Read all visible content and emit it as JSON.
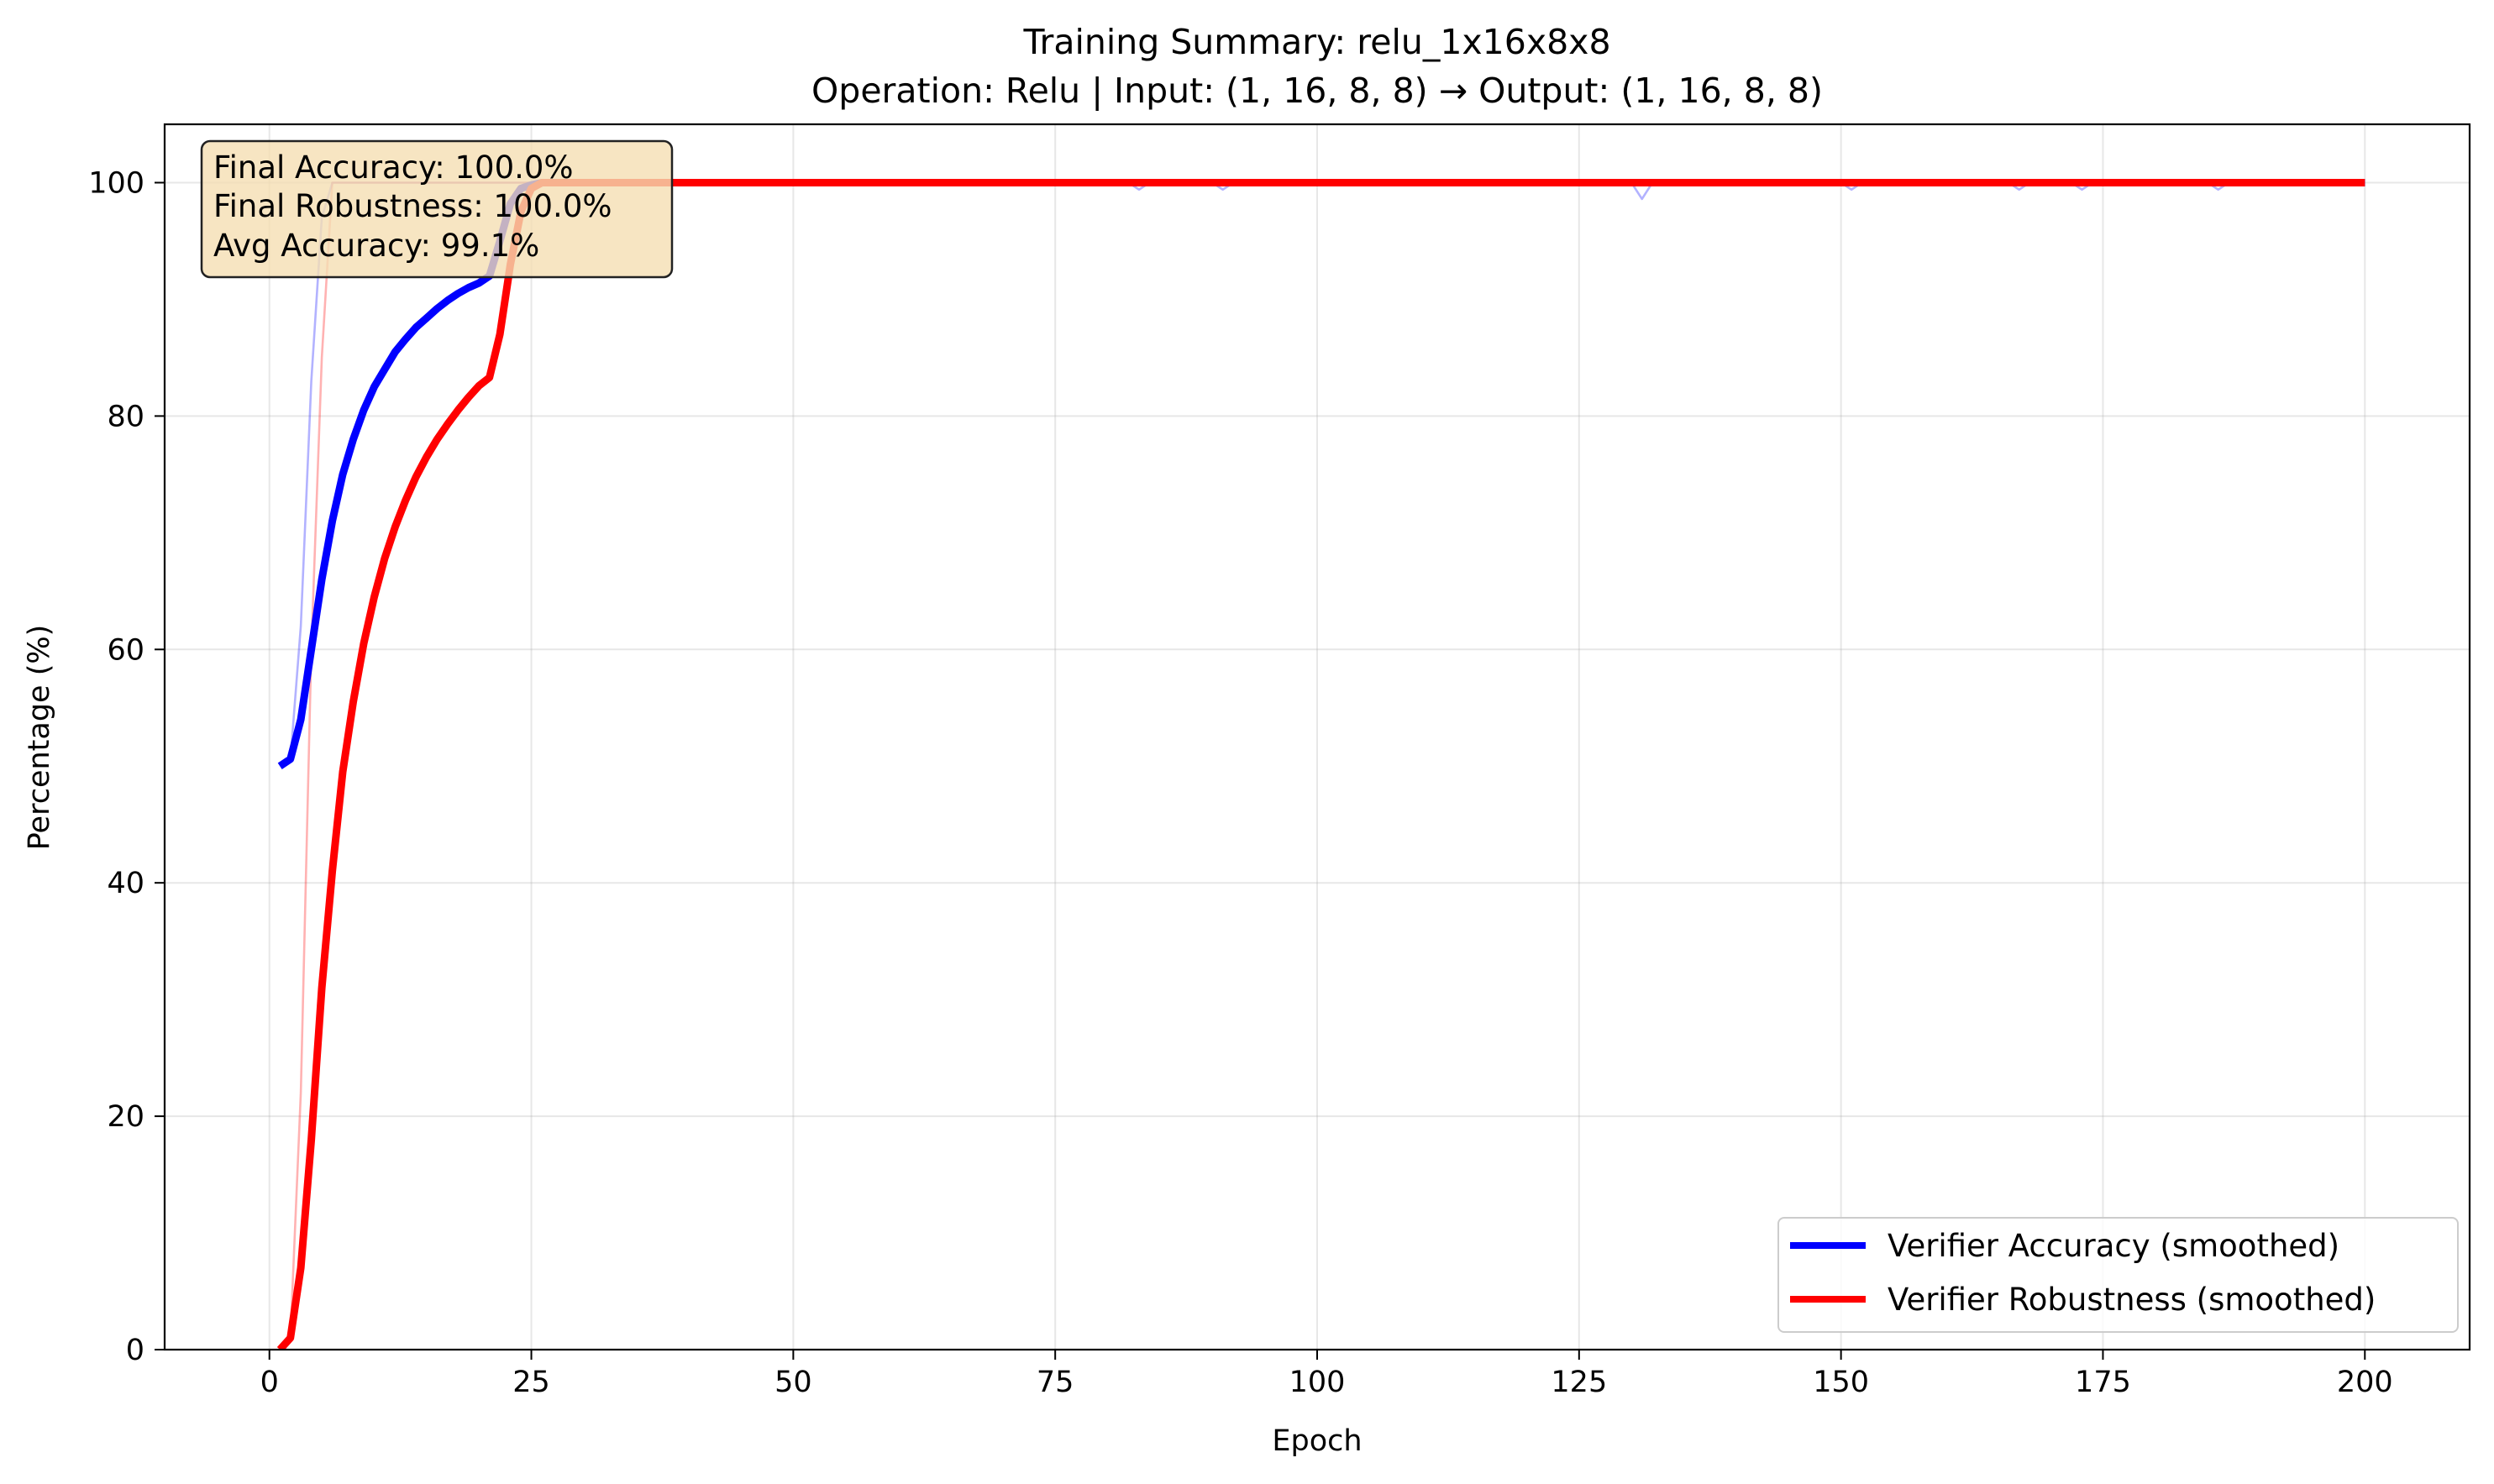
{
  "chart_data": {
    "type": "line",
    "title": "Training Summary: relu_1x16x8x8",
    "subtitle": "Operation: Relu | Input: (1, 16, 8, 8) → Output: (1, 16, 8, 8)",
    "xlabel": "Epoch",
    "ylabel": "Percentage (%)",
    "xlim": [
      -10,
      210
    ],
    "ylim": [
      0,
      105
    ],
    "xticks": [
      0,
      25,
      50,
      75,
      100,
      125,
      150,
      175,
      200
    ],
    "yticks": [
      0,
      20,
      40,
      60,
      80,
      100
    ],
    "grid": true,
    "legend_position": "lower right",
    "summary_box": [
      "Final Accuracy: 100.0%",
      "Final Robustness: 100.0%",
      "Avg Accuracy: 99.1%"
    ],
    "series": [
      {
        "name": "Verifier Accuracy (smoothed)",
        "color": "#0000ff",
        "style": "bold",
        "x": [
          1,
          2,
          3,
          4,
          5,
          6,
          7,
          8,
          9,
          10,
          11,
          12,
          13,
          14,
          15,
          16,
          17,
          18,
          19,
          20,
          21,
          22,
          23,
          24,
          25,
          26,
          28,
          30,
          35,
          40,
          50,
          60,
          75,
          100,
          125,
          150,
          175,
          200
        ],
        "y": [
          50,
          50.6,
          54,
          60,
          66,
          71,
          75,
          78,
          80.5,
          82.5,
          84,
          85.5,
          86.6,
          87.6,
          88.4,
          89.2,
          89.9,
          90.5,
          91,
          91.4,
          92,
          95,
          98.2,
          99.5,
          99.8,
          100,
          100,
          100,
          100,
          100,
          100,
          100,
          100,
          100,
          100,
          100,
          100,
          100
        ]
      },
      {
        "name": "Verifier Robustness (smoothed)",
        "color": "#ff0000",
        "style": "bold",
        "x": [
          1,
          2,
          3,
          4,
          5,
          6,
          7,
          8,
          9,
          10,
          11,
          12,
          13,
          14,
          15,
          16,
          17,
          18,
          19,
          20,
          21,
          22,
          23,
          24,
          25,
          26,
          28,
          30,
          35,
          40,
          50,
          60,
          75,
          100,
          125,
          150,
          175,
          200
        ],
        "y": [
          0,
          1,
          7,
          18,
          31,
          41,
          49.5,
          55.5,
          60.5,
          64.5,
          67.8,
          70.5,
          72.8,
          74.8,
          76.5,
          78,
          79.3,
          80.5,
          81.6,
          82.6,
          83.3,
          87,
          93,
          97.5,
          99.5,
          100,
          100,
          100,
          100,
          100,
          100,
          100,
          100,
          100,
          100,
          100,
          100,
          100
        ]
      },
      {
        "name": "",
        "color": "#0000ff",
        "style": "raw",
        "x": [
          1,
          2,
          3,
          4,
          5,
          6,
          7,
          8,
          10,
          20,
          40,
          60,
          82,
          83,
          84,
          90,
          91,
          92,
          100,
          130,
          131,
          132,
          140,
          150,
          151,
          152,
          166,
          167,
          168,
          172,
          173,
          174,
          185,
          186,
          187,
          200
        ],
        "y": [
          50,
          50.5,
          62,
          83,
          97,
          100,
          100,
          100,
          100,
          100,
          100,
          100,
          100,
          99.4,
          100,
          100,
          99.4,
          100,
          100,
          100,
          98.6,
          100,
          100,
          100,
          99.4,
          100,
          100,
          99.4,
          100,
          100,
          99.4,
          100,
          100,
          99.4,
          100,
          100
        ]
      },
      {
        "name": "",
        "color": "#ff0000",
        "style": "raw",
        "x": [
          1,
          2,
          3,
          4,
          5,
          6,
          7,
          8,
          10,
          50,
          100,
          150,
          200
        ],
        "y": [
          0,
          1,
          22,
          60,
          85,
          100,
          100,
          100,
          100,
          100,
          100,
          100,
          100
        ]
      }
    ]
  }
}
